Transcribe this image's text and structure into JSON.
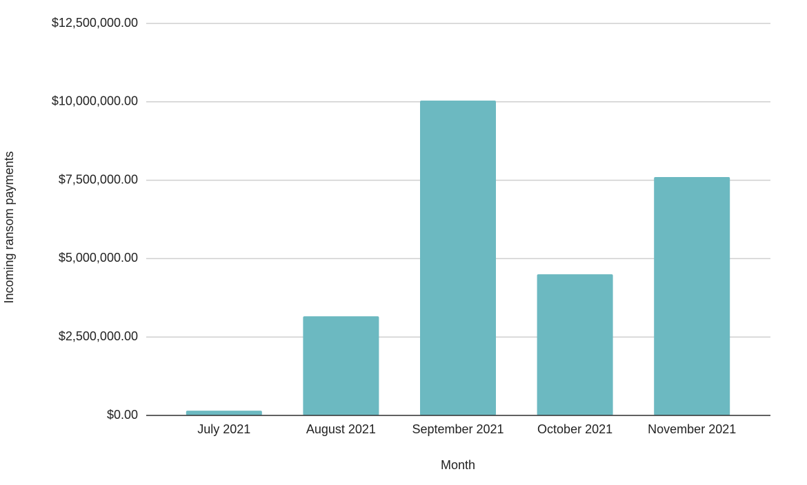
{
  "chart_data": {
    "type": "bar",
    "x_label": "Month",
    "y_label": "Incoming ransom payments",
    "categories": [
      "July 2021",
      "August 2021",
      "September 2021",
      "October 2021",
      "November 2021"
    ],
    "values": [
      150000,
      3160000,
      10040000,
      4500000,
      7600000
    ],
    "color": "#6cb9c1",
    "ylim": [
      0,
      12500000
    ],
    "yticks": [
      {
        "value": 0,
        "label": "$0.00"
      },
      {
        "value": 2500000,
        "label": "$2,500,000.00"
      },
      {
        "value": 5000000,
        "label": "$5,000,000.00"
      },
      {
        "value": 7500000,
        "label": "$7,500,000.00"
      },
      {
        "value": 10000000,
        "label": "$10,000,000.00"
      },
      {
        "value": 12500000,
        "label": "$12,500,000.00"
      }
    ],
    "grid": true
  }
}
